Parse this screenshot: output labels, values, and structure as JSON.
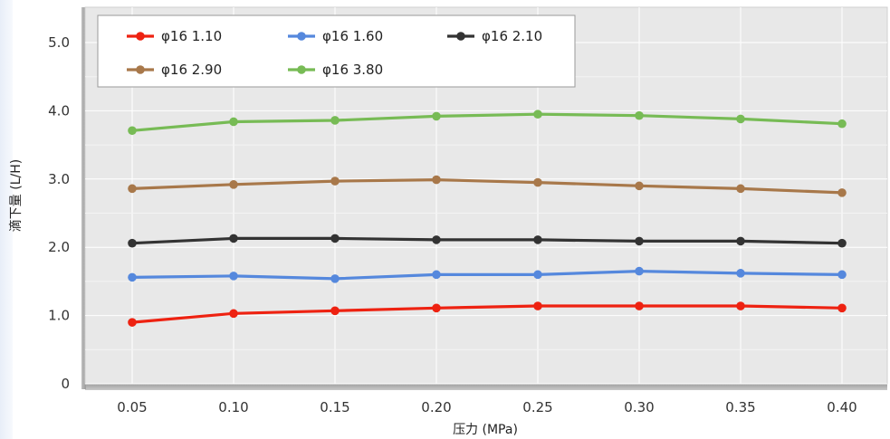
{
  "chart_data": {
    "type": "line",
    "xlabel": "压力 (MPa)",
    "ylabel": "滴下量 (L/H)",
    "x": [
      0.05,
      0.1,
      0.15,
      0.2,
      0.25,
      0.3,
      0.35,
      0.4
    ],
    "x_tick_labels": [
      "0.05",
      "0.10",
      "0.15",
      "0.20",
      "0.25",
      "0.30",
      "0.35",
      "0.40"
    ],
    "y_tick_labels": [
      "0",
      "1.0",
      "2.0",
      "3.0",
      "4.0",
      "5.0"
    ],
    "y_ticks": [
      0,
      1,
      2,
      3,
      4,
      5
    ],
    "ylim": [
      0,
      5.5
    ],
    "grid": true,
    "legend_position": "top-left",
    "series": [
      {
        "name": "φ16 1.10",
        "color": "#ee2211",
        "values": [
          0.9,
          1.03,
          1.07,
          1.11,
          1.14,
          1.14,
          1.14,
          1.11
        ]
      },
      {
        "name": "φ16 1.60",
        "color": "#5588dd",
        "values": [
          1.56,
          1.58,
          1.54,
          1.6,
          1.6,
          1.65,
          1.62,
          1.6
        ]
      },
      {
        "name": "φ16 2.10",
        "color": "#333333",
        "values": [
          2.06,
          2.13,
          2.13,
          2.11,
          2.11,
          2.09,
          2.09,
          2.06
        ]
      },
      {
        "name": "φ16 2.90",
        "color": "#a8784a",
        "values": [
          2.86,
          2.92,
          2.97,
          2.99,
          2.95,
          2.9,
          2.86,
          2.8
        ]
      },
      {
        "name": "φ16 3.80",
        "color": "#77bb55",
        "values": [
          3.71,
          3.84,
          3.86,
          3.92,
          3.95,
          3.93,
          3.88,
          3.81
        ]
      }
    ]
  }
}
